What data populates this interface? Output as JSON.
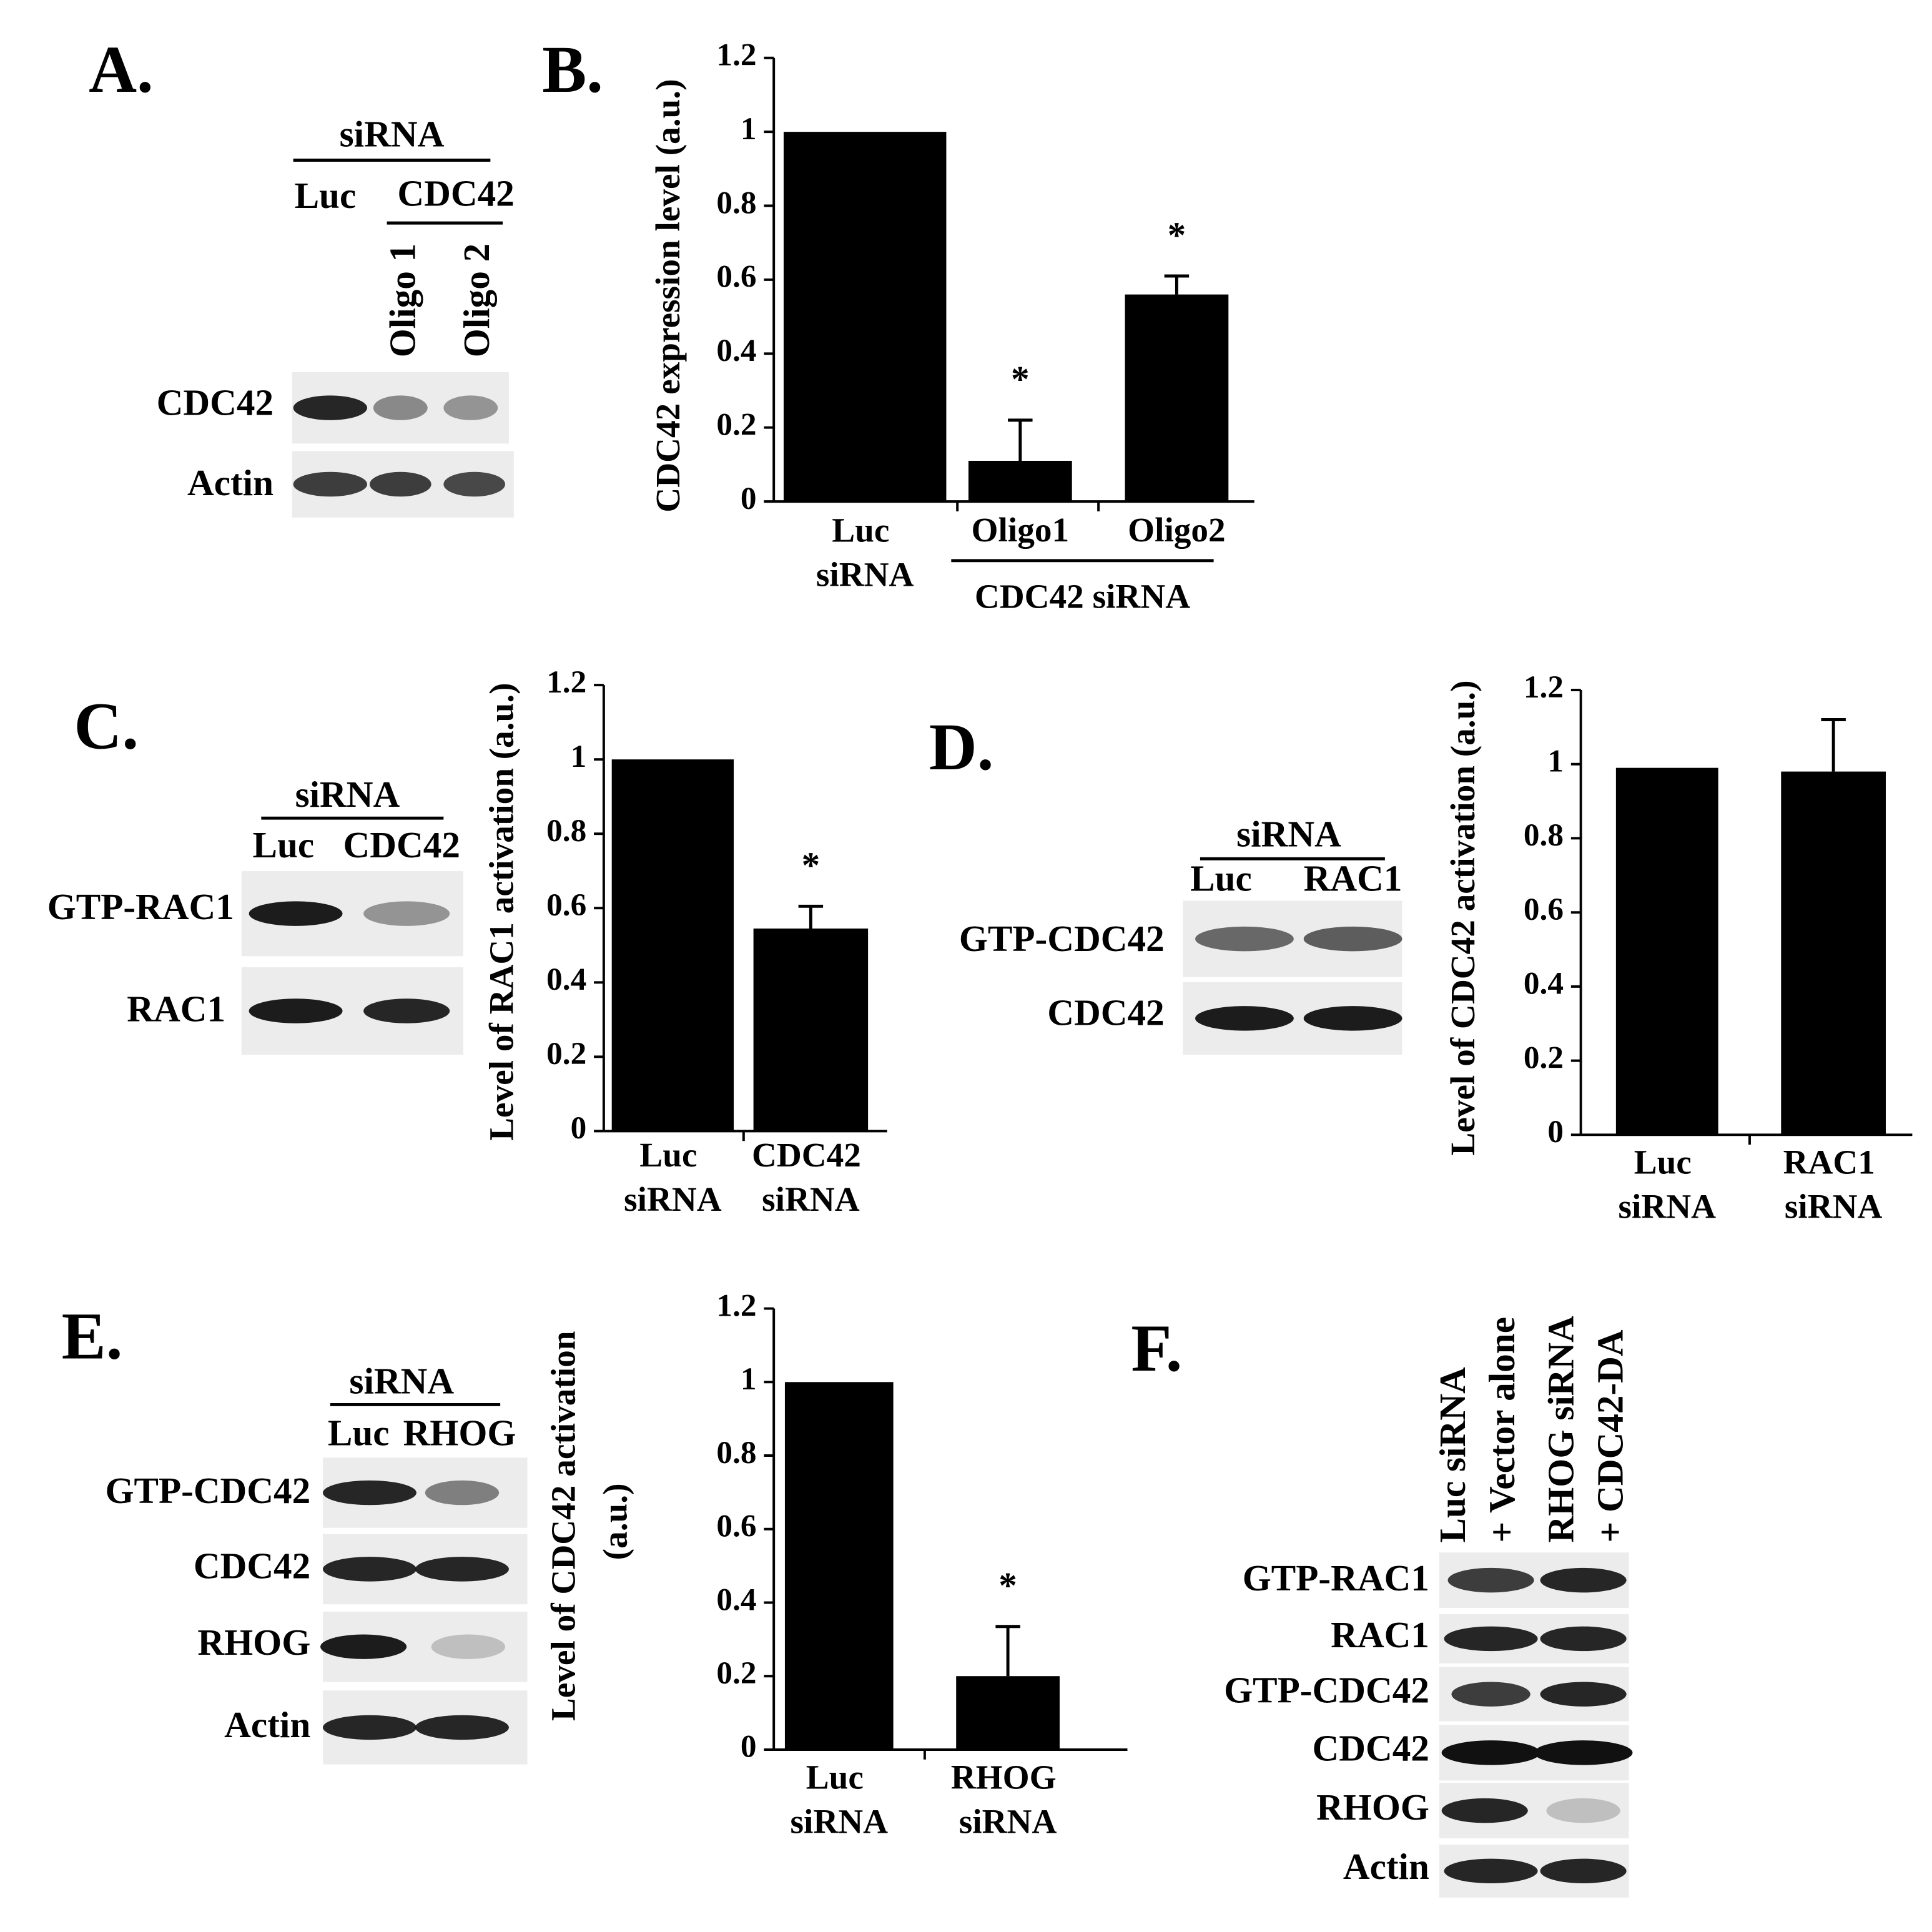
{
  "chart_data": [
    {
      "type": "bar",
      "panel": "B.",
      "y_label": "CDC42 expression level (a.u.)",
      "categories": [
        "Luc siRNA",
        "Oligo1",
        "Oligo2"
      ],
      "values": [
        1.0,
        0.11,
        0.56
      ],
      "errors": [
        null,
        0.11,
        0.05
      ],
      "annotations": [
        null,
        "*",
        "*"
      ],
      "group_label": "CDC42 siRNA",
      "color": "#000000",
      "ylim": [
        0,
        1.2
      ],
      "yticks": [
        0,
        0.2,
        0.4,
        0.6,
        0.8,
        1,
        1.2
      ]
    },
    {
      "type": "bar",
      "y_label": "Level of  RAC1 activation (a.u.)",
      "categories": [
        "Luc siRNA",
        "CDC42 siRNA"
      ],
      "values": [
        1.0,
        0.545
      ],
      "errors": [
        null,
        0.06
      ],
      "annotations": [
        null,
        "*"
      ],
      "color": "#000000",
      "ylim": [
        0,
        1.2
      ],
      "yticks": [
        0,
        0.2,
        0.4,
        0.6,
        0.8,
        1,
        1.2
      ]
    },
    {
      "type": "bar",
      "y_label": "Level of CDC42 activation (a.u.)",
      "categories": [
        "Luc siRNA",
        "RAC1 siRNA"
      ],
      "values": [
        0.99,
        0.98
      ],
      "errors": [
        null,
        0.14
      ],
      "color": "#000000",
      "ylim": [
        0,
        1.2
      ],
      "yticks": [
        0,
        0.2,
        0.4,
        0.6,
        0.8,
        1,
        1.2
      ]
    },
    {
      "type": "bar",
      "y_label": "Level of CDC42 activation (a.u.)",
      "categories": [
        "Luc siRNA",
        "RHOG siRNA"
      ],
      "values": [
        1.0,
        0.2
      ],
      "errors": [
        null,
        0.135
      ],
      "annotations": [
        null,
        "*"
      ],
      "color": "#000000",
      "ylim": [
        0,
        1.2
      ],
      "yticks": [
        0,
        0.2,
        0.4,
        0.6,
        0.8,
        1,
        1.2
      ]
    }
  ],
  "blots": [
    {
      "panel": "A.",
      "header": "siRNA",
      "lanes": [
        "Luc",
        "CDC42"
      ],
      "sublanes": [
        "Oligo 1",
        "Oligo 2"
      ],
      "rows": [
        "CDC42",
        "Actin"
      ]
    },
    {
      "panel": "C.",
      "header": "siRNA",
      "lanes": [
        "Luc",
        "CDC42"
      ],
      "rows": [
        "GTP-RAC1",
        "RAC1"
      ]
    },
    {
      "panel": "D.",
      "header": "siRNA",
      "lanes": [
        "Luc",
        "RAC1"
      ],
      "rows": [
        "GTP-CDC42",
        "CDC42"
      ]
    },
    {
      "panel": "E.",
      "header": "siRNA",
      "lanes": [
        "Luc",
        "RHOG"
      ],
      "rows": [
        "GTP-CDC42",
        "CDC42",
        "RHOG",
        "Actin"
      ]
    },
    {
      "panel": "F.",
      "lanes": [
        "Luc siRNA",
        "+ Vector alone",
        "RHOG siRNA",
        "+ CDC42-DA"
      ],
      "rows": [
        "GTP-RAC1",
        "RAC1",
        "GTP-CDC42",
        "CDC42",
        "RHOG",
        "Actin"
      ]
    }
  ]
}
